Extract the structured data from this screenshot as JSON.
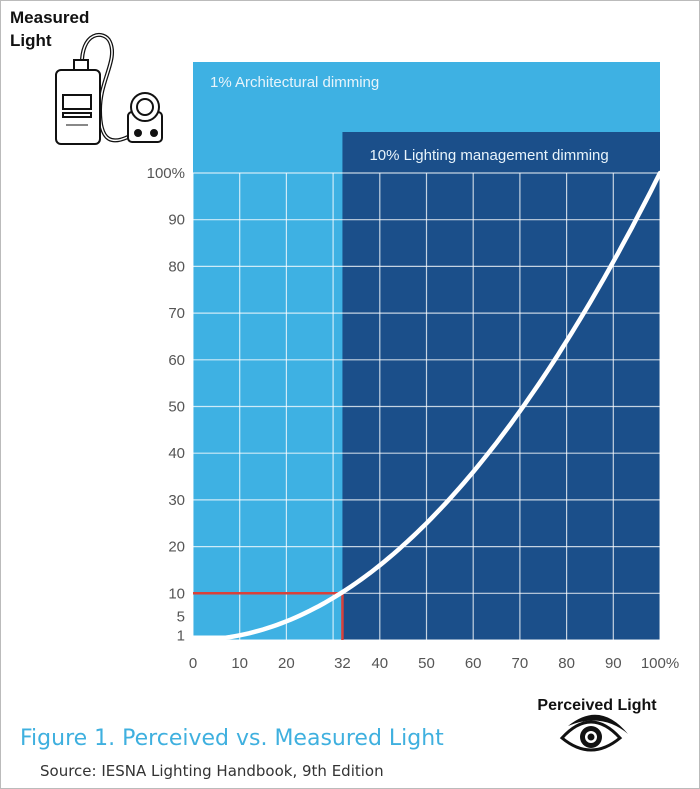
{
  "chart_data": {
    "type": "line",
    "title": "Figure 1. Perceived vs. Measured Light",
    "source": "Source:  IESNA Lighting Handbook, 9th Edition",
    "xlabel": "Perceived Light",
    "ylabel_line1": "Measured",
    "ylabel_line2": "Light",
    "xlim": [
      0,
      100
    ],
    "ylim": [
      0,
      100
    ],
    "x_ticks": [
      0,
      10,
      20,
      32,
      40,
      50,
      60,
      70,
      80,
      90,
      100
    ],
    "x_tick_labels": [
      "0",
      "10",
      "20",
      "32",
      "40",
      "50",
      "60",
      "70",
      "80",
      "90",
      "100%"
    ],
    "y_ticks": [
      1,
      5,
      10,
      20,
      30,
      40,
      50,
      60,
      70,
      80,
      90,
      100
    ],
    "y_tick_labels": [
      "1",
      "5",
      "10",
      "20",
      "30",
      "40",
      "50",
      "60",
      "70",
      "80",
      "90",
      "100%"
    ],
    "grid": true,
    "series": [
      {
        "name": "Measured vs perceived curve",
        "color": "#ffffff",
        "x": [
          0,
          10,
          20,
          32,
          40,
          50,
          60,
          70,
          80,
          90,
          100
        ],
        "y": [
          0.5,
          1,
          4,
          10,
          16,
          25,
          36,
          49,
          64,
          81,
          100
        ]
      }
    ],
    "highlight": {
      "x": 32,
      "y": 10,
      "color": "#d9413a"
    },
    "regions": [
      {
        "label": "1% Architectural dimming",
        "x_from": 0,
        "x_to": 100,
        "color": "#3eb1e3"
      },
      {
        "label": "10% Lighting management dimming",
        "x_from": 32,
        "x_to": 100,
        "color": "#1b4f8a"
      }
    ]
  }
}
